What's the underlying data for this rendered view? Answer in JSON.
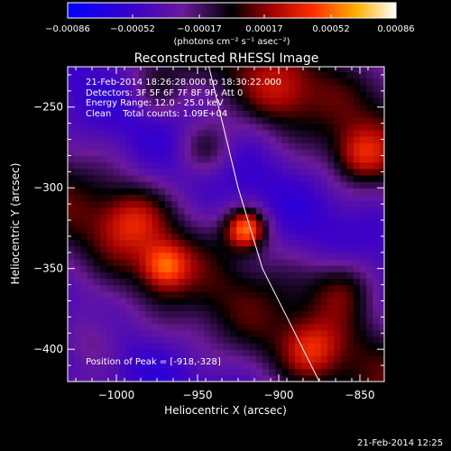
{
  "chart_data": {
    "type": "heatmap",
    "title": "Reconstructed RHESSI Image",
    "xlabel": "Heliocentric X (arcsec)",
    "ylabel": "Heliocentric Y (arcsec)",
    "xlim": [
      -1030,
      -835
    ],
    "ylim": [
      -420,
      -225
    ],
    "x_ticks": [
      -1000,
      -950,
      -900,
      -850
    ],
    "x_tick_labels": [
      "−1000",
      "−950",
      "−900",
      "−850"
    ],
    "y_ticks": [
      -250,
      -300,
      -350,
      -400
    ],
    "y_tick_labels": [
      "−250",
      "−300",
      "−350",
      "−400"
    ],
    "colorbar": {
      "ticks": [
        -0.00086,
        -0.00052,
        -0.00017,
        0.00017,
        0.00052,
        0.00086
      ],
      "tick_labels": [
        "−0.00086",
        "−0.00052",
        "−0.00017",
        "0.00017",
        "0.00052",
        "0.00086"
      ],
      "unit_label": "(photons cm⁻² s⁻¹ asec⁻²)",
      "range": [
        -0.00086,
        0.00086
      ]
    },
    "peak": {
      "x": -918,
      "y": -328
    },
    "limb_curve": [
      [
        -943,
        -225
      ],
      [
        -925,
        -300
      ],
      [
        -910,
        -350
      ],
      [
        -890,
        -390
      ],
      [
        -875,
        -420
      ]
    ],
    "sources": [
      {
        "x": -920,
        "y": -325,
        "amp": 0.00086,
        "sigma": 9
      },
      {
        "x": -970,
        "y": -348,
        "amp": 0.00052,
        "sigma": 10
      },
      {
        "x": -945,
        "y": -275,
        "amp": 0.00038,
        "sigma": 12
      },
      {
        "x": -990,
        "y": -320,
        "amp": 0.00035,
        "sigma": 14
      },
      {
        "x": -850,
        "y": -280,
        "amp": 0.00042,
        "sigma": 12
      },
      {
        "x": -860,
        "y": -360,
        "amp": 0.0004,
        "sigma": 14
      },
      {
        "x": -880,
        "y": -400,
        "amp": 0.00034,
        "sigma": 12
      },
      {
        "x": -1015,
        "y": -395,
        "amp": 0.0003,
        "sigma": 14
      },
      {
        "x": -975,
        "y": -240,
        "amp": 0.00025,
        "sigma": 12
      },
      {
        "x": -900,
        "y": -240,
        "amp": 0.00028,
        "sigma": 14
      }
    ]
  },
  "info": {
    "time_range": "21-Feb-2014 18:26:28.000 to 18:30:22.000",
    "detectors": "Detectors: 3F 5F 6F 7F 8F 9F, Att 0",
    "energy": "Energy Range: 12.0 - 25.0 keV",
    "method": "Clean    Total counts: 1.09E+04"
  },
  "peak_label": "Position of Peak = [-918,-328]",
  "timestamp": "21-Feb-2014 12:25"
}
